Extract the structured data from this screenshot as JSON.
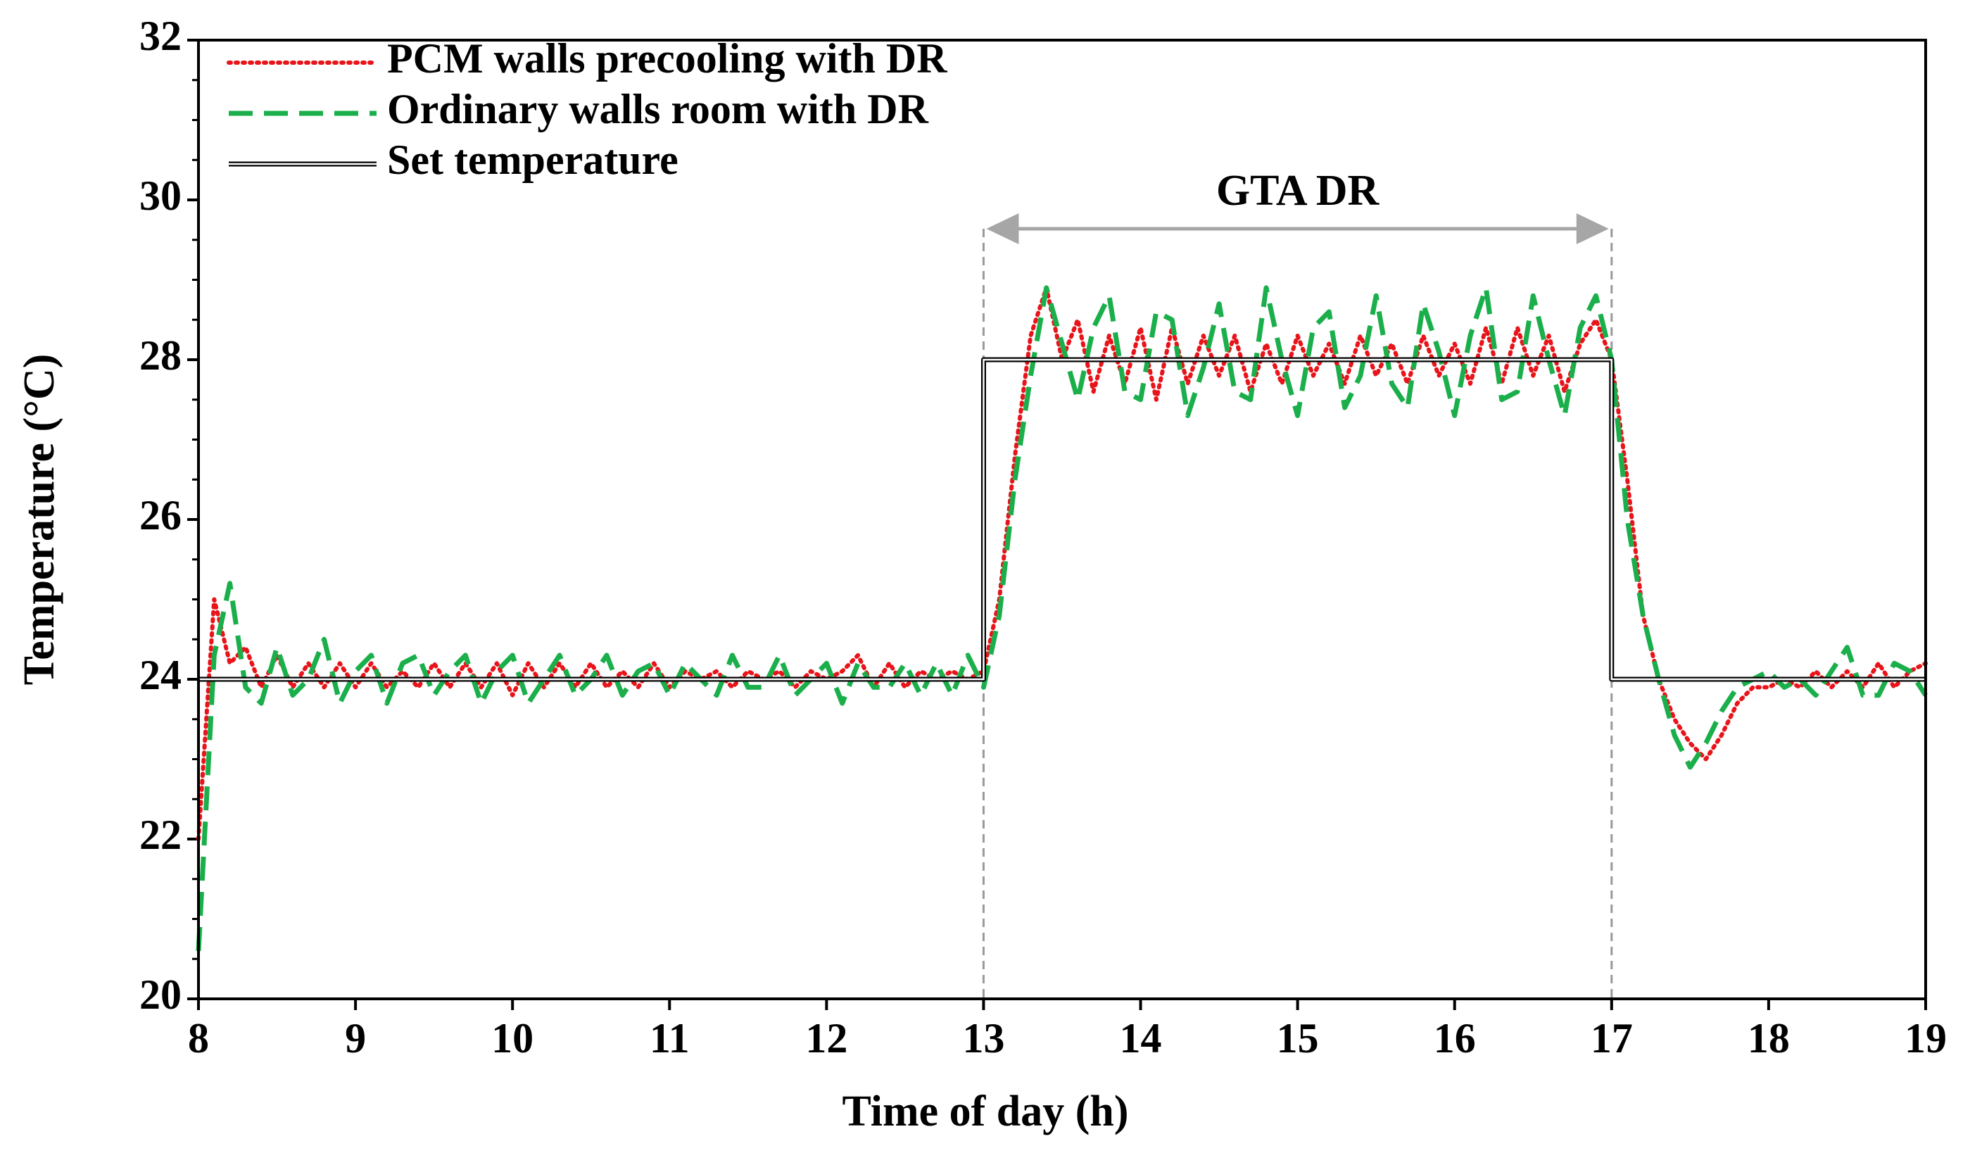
{
  "chart_data": {
    "type": "line",
    "x_label": "Time of day (h)",
    "y_label": "Temperature (°C)",
    "xlim": [
      8,
      19
    ],
    "ylim": [
      20,
      32
    ],
    "xticks": [
      8,
      9,
      10,
      11,
      12,
      13,
      14,
      15,
      16,
      17,
      18,
      19
    ],
    "yticks": [
      20,
      22,
      24,
      26,
      28,
      30,
      32
    ],
    "legend": "top-left",
    "annotations": [
      {
        "text": "GTA DR",
        "x_start": 13,
        "x_end": 17
      }
    ],
    "series": [
      {
        "name": "PCM walls precooling with DR",
        "color": "#e8141a",
        "style": "dotted",
        "x": [
          8.0,
          8.1,
          8.2,
          8.3,
          8.4,
          8.5,
          8.6,
          8.7,
          8.8,
          8.9,
          9.0,
          9.1,
          9.2,
          9.3,
          9.4,
          9.5,
          9.6,
          9.7,
          9.8,
          9.9,
          10.0,
          10.1,
          10.2,
          10.3,
          10.4,
          10.5,
          10.6,
          10.7,
          10.8,
          10.9,
          11.0,
          11.1,
          11.2,
          11.3,
          11.4,
          11.5,
          11.6,
          11.7,
          11.8,
          11.9,
          12.0,
          12.1,
          12.2,
          12.3,
          12.4,
          12.5,
          12.6,
          12.7,
          12.8,
          12.9,
          13.0,
          13.1,
          13.2,
          13.3,
          13.4,
          13.5,
          13.6,
          13.7,
          13.8,
          13.9,
          14.0,
          14.1,
          14.2,
          14.3,
          14.4,
          14.5,
          14.6,
          14.7,
          14.8,
          14.9,
          15.0,
          15.1,
          15.2,
          15.3,
          15.4,
          15.5,
          15.6,
          15.7,
          15.8,
          15.9,
          16.0,
          16.1,
          16.2,
          16.3,
          16.4,
          16.5,
          16.6,
          16.7,
          16.8,
          16.9,
          17.0,
          17.1,
          17.2,
          17.3,
          17.4,
          17.5,
          17.6,
          17.7,
          17.8,
          17.9,
          18.0,
          18.1,
          18.2,
          18.3,
          18.4,
          18.5,
          18.6,
          18.7,
          18.8,
          18.9,
          19.0
        ],
        "values": [
          22.0,
          25.0,
          24.2,
          24.4,
          23.9,
          24.3,
          23.9,
          24.2,
          23.9,
          24.2,
          23.9,
          24.2,
          23.9,
          24.1,
          23.9,
          24.2,
          23.9,
          24.2,
          23.9,
          24.2,
          23.8,
          24.2,
          23.9,
          24.2,
          23.9,
          24.2,
          23.9,
          24.1,
          23.9,
          24.2,
          23.9,
          24.1,
          24.0,
          24.1,
          23.9,
          24.1,
          24.0,
          24.1,
          23.9,
          24.1,
          24.0,
          24.1,
          24.3,
          23.9,
          24.2,
          23.9,
          24.1,
          24.0,
          24.1,
          24.0,
          24.1,
          25.0,
          26.8,
          28.3,
          28.9,
          28.0,
          28.5,
          27.6,
          28.3,
          27.7,
          28.4,
          27.5,
          28.4,
          27.7,
          28.3,
          27.8,
          28.3,
          27.6,
          28.2,
          27.7,
          28.3,
          27.8,
          28.2,
          27.7,
          28.3,
          27.8,
          28.2,
          27.7,
          28.3,
          27.8,
          28.2,
          27.7,
          28.4,
          27.7,
          28.4,
          27.8,
          28.3,
          27.6,
          28.2,
          28.5,
          28.0,
          26.5,
          24.8,
          24.0,
          23.5,
          23.2,
          23.0,
          23.3,
          23.7,
          23.9,
          23.9,
          24.0,
          23.9,
          24.1,
          23.9,
          24.1,
          23.9,
          24.2,
          23.9,
          24.1,
          24.2
        ]
      },
      {
        "name": "Ordinary walls room with DR",
        "color": "#1aaf4b",
        "style": "dashed",
        "x": [
          8.0,
          8.1,
          8.2,
          8.3,
          8.4,
          8.5,
          8.6,
          8.7,
          8.8,
          8.9,
          9.0,
          9.1,
          9.2,
          9.3,
          9.4,
          9.5,
          9.6,
          9.7,
          9.8,
          9.9,
          10.0,
          10.1,
          10.2,
          10.3,
          10.4,
          10.5,
          10.6,
          10.7,
          10.8,
          10.9,
          11.0,
          11.1,
          11.2,
          11.3,
          11.4,
          11.5,
          11.6,
          11.7,
          11.8,
          11.9,
          12.0,
          12.1,
          12.2,
          12.3,
          12.4,
          12.5,
          12.6,
          12.7,
          12.8,
          12.9,
          13.0,
          13.1,
          13.2,
          13.3,
          13.4,
          13.5,
          13.6,
          13.7,
          13.8,
          13.9,
          14.0,
          14.1,
          14.2,
          14.3,
          14.4,
          14.5,
          14.6,
          14.7,
          14.8,
          14.9,
          15.0,
          15.1,
          15.2,
          15.3,
          15.4,
          15.5,
          15.6,
          15.7,
          15.8,
          15.9,
          16.0,
          16.1,
          16.2,
          16.3,
          16.4,
          16.5,
          16.6,
          16.7,
          16.8,
          16.9,
          17.0,
          17.1,
          17.2,
          17.3,
          17.4,
          17.5,
          17.6,
          17.7,
          17.8,
          17.9,
          18.0,
          18.1,
          18.2,
          18.3,
          18.4,
          18.5,
          18.6,
          18.7,
          18.8,
          18.9,
          19.0
        ],
        "values": [
          20.6,
          24.3,
          25.2,
          23.9,
          23.7,
          24.4,
          23.8,
          24.0,
          24.5,
          23.7,
          24.1,
          24.3,
          23.7,
          24.2,
          24.3,
          23.8,
          24.1,
          24.3,
          23.7,
          24.1,
          24.3,
          23.7,
          24.0,
          24.3,
          23.8,
          24.0,
          24.3,
          23.8,
          24.1,
          24.2,
          23.8,
          24.2,
          24.0,
          23.8,
          24.3,
          23.9,
          23.9,
          24.3,
          23.8,
          24.0,
          24.2,
          23.7,
          24.2,
          23.9,
          23.9,
          24.2,
          23.8,
          24.2,
          23.8,
          24.3,
          23.9,
          24.8,
          26.5,
          27.8,
          28.9,
          28.2,
          27.5,
          28.4,
          28.8,
          27.6,
          27.5,
          28.6,
          28.5,
          27.3,
          27.9,
          28.7,
          27.6,
          27.5,
          28.9,
          28.0,
          27.3,
          28.4,
          28.6,
          27.4,
          27.8,
          28.8,
          27.7,
          27.4,
          28.7,
          28.1,
          27.3,
          28.3,
          28.9,
          27.5,
          27.6,
          28.8,
          28.0,
          27.3,
          28.4,
          28.8,
          28.0,
          26.0,
          24.8,
          24.0,
          23.3,
          22.9,
          23.2,
          23.6,
          23.9,
          24.0,
          24.1,
          23.9,
          24.0,
          23.8,
          24.1,
          24.4,
          23.8,
          23.8,
          24.2,
          24.1,
          23.8
        ]
      },
      {
        "name": "Set temperature",
        "color": "#000000",
        "style": "double",
        "x": [
          8,
          13,
          13,
          17,
          17,
          19
        ],
        "values": [
          24,
          24,
          28,
          28,
          24,
          24
        ]
      }
    ]
  }
}
